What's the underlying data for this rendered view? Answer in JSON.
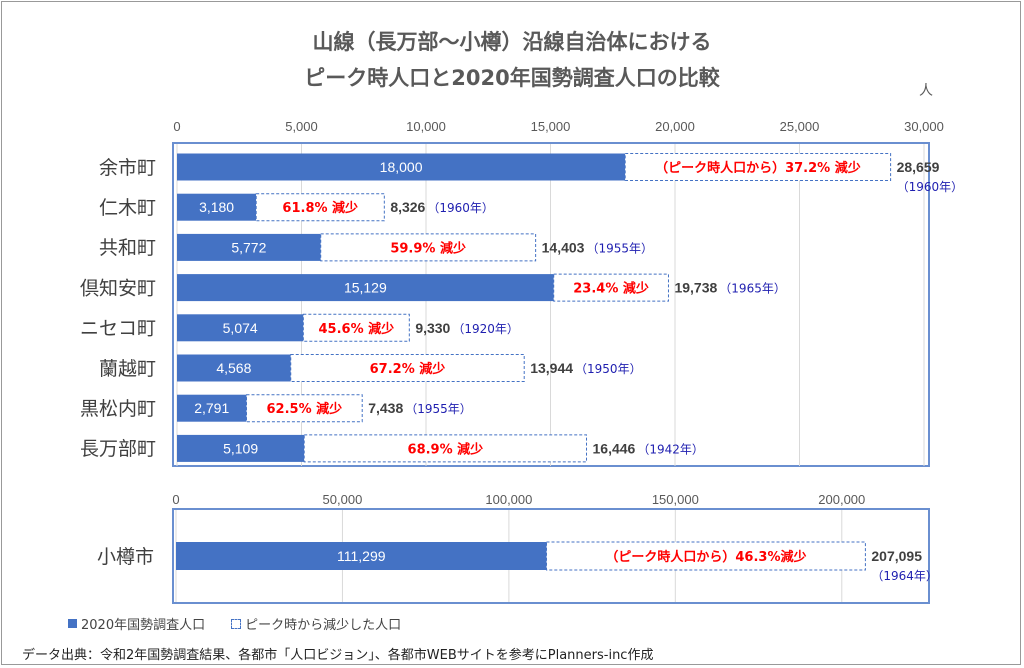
{
  "title_line1": "山線（長万部～小樽）沿線自治体における",
  "title_line2": "ピーク時人口と2020年国勢調査人口の比較",
  "unit": "人",
  "colors": {
    "bar_2020": "#4472c4",
    "decline_text": "#ff0000",
    "year_text": "#1f1fb0",
    "panel_border": "#6a8fd0"
  },
  "legend": [
    {
      "label": "2020年国勢調査人口",
      "style": "solid"
    },
    {
      "label": "ピーク時から減少した人口",
      "style": "dashed"
    }
  ],
  "source": "データ出典：令和2年国勢調査結果、各都市「人口ビジョン」、各都市WEBサイトを参考にPlanners-inc作成",
  "chart_data": [
    {
      "type": "bar",
      "orientation": "horizontal",
      "stacked": true,
      "xlim": [
        0,
        30000
      ],
      "ticks": [
        "0",
        "5,000",
        "10,000",
        "15,000",
        "20,000",
        "25,000",
        "30,000"
      ],
      "tick_values": [
        0,
        5000,
        10000,
        15000,
        20000,
        25000,
        30000
      ],
      "categories": [
        "余市町",
        "仁木町",
        "共和町",
        "倶知安町",
        "ニセコ町",
        "蘭越町",
        "黒松内町",
        "長万部町"
      ],
      "series": [
        {
          "name": "2020年国勢調査人口",
          "values": [
            18000,
            3180,
            5772,
            15129,
            5074,
            4568,
            2791,
            5109
          ],
          "labels": [
            "18,000",
            "3,180",
            "5,772",
            "15,129",
            "5,074",
            "4,568",
            "2,791",
            "5,109"
          ]
        },
        {
          "name": "ピーク時から減少した人口",
          "values": [
            10659,
            5146,
            8631,
            4609,
            4256,
            9376,
            4647,
            11337
          ],
          "labels": [
            "（ピーク時人口から）37.2% 減少",
            "61.8% 減少",
            "59.9% 減少",
            "23.4% 減少",
            "45.6% 減少",
            "67.2% 減少",
            "62.5% 減少",
            "68.9% 減少"
          ]
        }
      ],
      "peak_values": [
        28659,
        8326,
        14403,
        19738,
        9330,
        13944,
        7438,
        16446
      ],
      "peak_labels": [
        "28,659",
        "8,326",
        "14,403",
        "19,738",
        "9,330",
        "13,944",
        "7,438",
        "16,446"
      ],
      "peak_years": [
        "（1960年）",
        "（1960年）",
        "（1955年）",
        "（1965年）",
        "（1920年）",
        "（1950年）",
        "（1955年）",
        "（1942年）"
      ]
    },
    {
      "type": "bar",
      "orientation": "horizontal",
      "stacked": true,
      "xlim": [
        0,
        225000
      ],
      "ticks": [
        "0",
        "50,000",
        "100,000",
        "150,000",
        "200,000"
      ],
      "tick_values": [
        0,
        50000,
        100000,
        150000,
        200000
      ],
      "categories": [
        "小樽市"
      ],
      "series": [
        {
          "name": "2020年国勢調査人口",
          "values": [
            111299
          ],
          "labels": [
            "111,299"
          ]
        },
        {
          "name": "ピーク時から減少した人口",
          "values": [
            95796
          ],
          "labels": [
            "（ピーク時人口から）46.3%減少"
          ]
        }
      ],
      "peak_values": [
        207095
      ],
      "peak_labels": [
        "207,095"
      ],
      "peak_years": [
        "（1964年）"
      ]
    }
  ]
}
